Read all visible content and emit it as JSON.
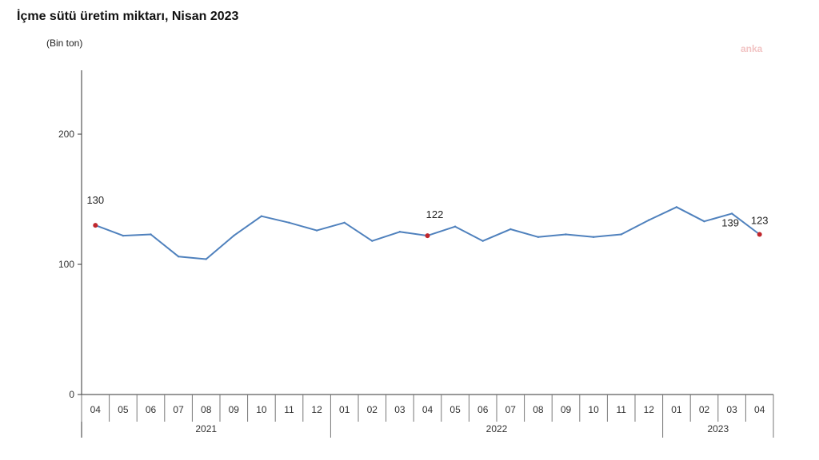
{
  "chart_data": {
    "type": "line",
    "title": "İçme sütü üretim miktarı, Nisan 2023",
    "unit": "(Bin  ton)",
    "watermark": "anka",
    "ylim": [
      0,
      250
    ],
    "y_ticks": [
      0,
      100,
      200
    ],
    "categories": [
      "04",
      "05",
      "06",
      "07",
      "08",
      "09",
      "10",
      "11",
      "12",
      "01",
      "02",
      "03",
      "04",
      "05",
      "06",
      "07",
      "08",
      "09",
      "10",
      "11",
      "12",
      "01",
      "02",
      "03",
      "04"
    ],
    "groups": [
      {
        "label": "2021",
        "count": 9
      },
      {
        "label": "2022",
        "count": 12
      },
      {
        "label": "2023",
        "count": 4
      }
    ],
    "series": [
      {
        "values": [
          130,
          122,
          123,
          106,
          104,
          122,
          137,
          132,
          126,
          132,
          118,
          125,
          122,
          129,
          118,
          127,
          121,
          123,
          121,
          123,
          134,
          144,
          133,
          139,
          123
        ],
        "color": "#4f81bd",
        "highlight_color": "#c0272d",
        "highlight_indices": [
          0,
          12,
          24
        ]
      }
    ],
    "data_labels": [
      {
        "index": 0,
        "text": "130"
      },
      {
        "index": 12,
        "text": "122"
      },
      {
        "index": 23,
        "text": "139"
      },
      {
        "index": 24,
        "text": "123"
      }
    ],
    "grid": false,
    "legend": "none"
  }
}
